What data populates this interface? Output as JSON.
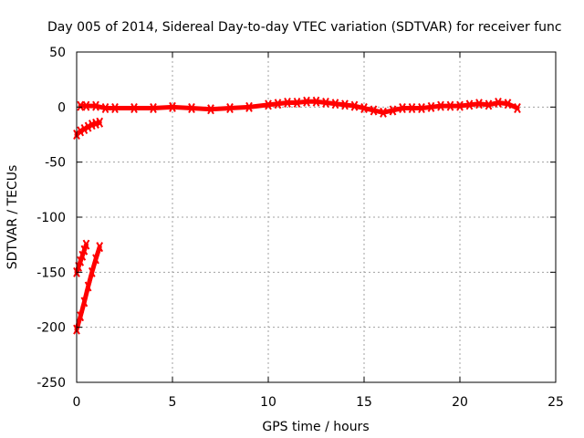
{
  "chart_data": {
    "type": "scatter",
    "title": "Day 005 of 2014, Sidereal Day-to-day VTEC variation (SDTVAR) for receiver func",
    "xlabel": "GPS time / hours",
    "ylabel": "SDTVAR / TECUs",
    "xlim": [
      0,
      25
    ],
    "ylim": [
      -250,
      50
    ],
    "x_ticks": [
      0,
      5,
      10,
      15,
      20,
      25
    ],
    "y_ticks": [
      -250,
      -200,
      -150,
      -100,
      -50,
      0,
      50
    ],
    "x_tick_labels": [
      "0",
      "5",
      "10",
      "15",
      "20",
      "25"
    ],
    "y_tick_labels": [
      "-250",
      "-200",
      "-150",
      "-100",
      "-50",
      "0",
      "50"
    ],
    "grid": true,
    "series_color": "#ff0000",
    "series": [
      {
        "x": [
          0.0,
          0.2,
          0.4,
          0.6,
          0.8,
          1.0,
          1.2
        ],
        "y": [
          -25,
          -22,
          -20,
          -18,
          -16,
          -15,
          -14
        ]
      },
      {
        "x": [
          0.0,
          0.1,
          0.2,
          0.3,
          0.4,
          0.5
        ],
        "y": [
          -150,
          -145,
          -140,
          -135,
          -130,
          -125
        ]
      },
      {
        "x": [
          0.0,
          0.2,
          0.4,
          0.6,
          0.8,
          1.0,
          1.2
        ],
        "y": [
          -202,
          -190,
          -177,
          -163,
          -150,
          -138,
          -127
        ]
      },
      {
        "x": [
          0.2,
          0.5,
          1.0,
          1.5,
          2,
          3,
          4,
          5,
          6,
          7,
          8,
          9,
          10,
          10.5,
          11,
          11.5,
          12,
          12.5,
          13,
          13.5,
          14,
          14.5,
          15,
          15.5,
          16,
          16.5,
          17,
          17.5,
          18,
          18.5,
          19,
          19.5,
          20,
          20.5,
          21,
          21.5,
          22,
          22.5,
          23
        ],
        "y": [
          1,
          1,
          1,
          -1,
          -1,
          -1,
          -1,
          0,
          -1,
          -2,
          -1,
          0,
          2,
          3,
          4,
          4,
          5,
          5,
          4,
          3,
          2,
          1,
          -1,
          -3,
          -5,
          -3,
          -1,
          -1,
          -1,
          0,
          1,
          1,
          1,
          2,
          3,
          2,
          4,
          3,
          -1
        ]
      }
    ]
  }
}
